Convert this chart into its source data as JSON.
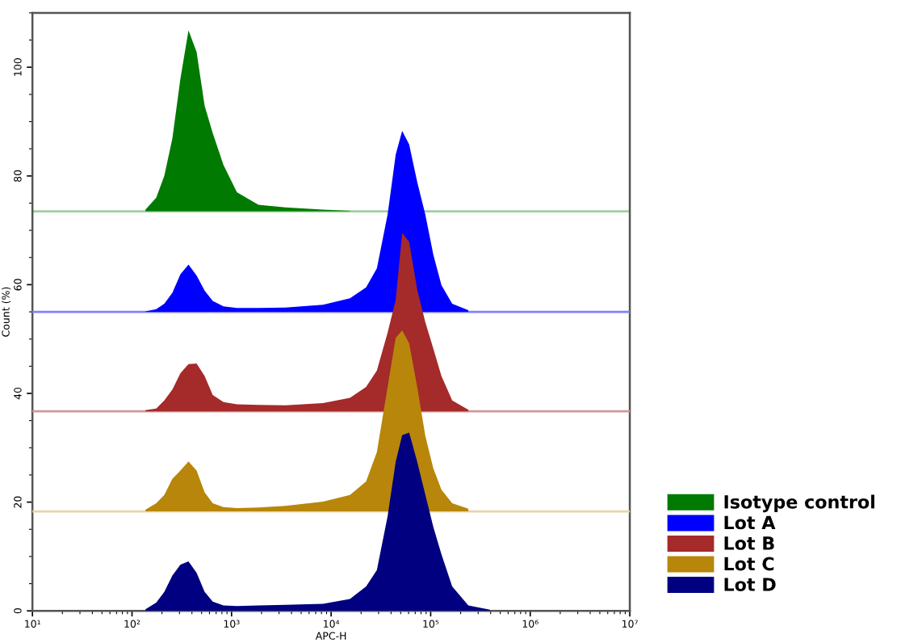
{
  "chart_data": {
    "type": "area",
    "xlabel": "APC-H",
    "ylabel": "Count (%)",
    "log": "x",
    "grid": false,
    "legend": "bottom right",
    "x": [
      136.5,
      175.1,
      211.0,
      254.3,
      306.5,
      369.4,
      445.3,
      536.6,
      647.0,
      829.8,
      1132,
      1863,
      3471,
      8296,
      15460,
      22460,
      28800,
      36940,
      44520,
      51690,
      60790,
      73250,
      88300,
      106400,
      128300,
      164500,
      238900,
      393000
    ],
    "xlim": [
      10,
      10000000
    ],
    "xticks": [
      {
        "value": 10,
        "label": "10¹"
      },
      {
        "value": 100,
        "label": "10²"
      },
      {
        "value": 1000,
        "label": "10³"
      },
      {
        "value": 10000,
        "label": "10⁴"
      },
      {
        "value": 100000,
        "label": "10⁵"
      },
      {
        "value": 1000000,
        "label": "10⁶"
      },
      {
        "value": 10000000,
        "label": "10⁷"
      }
    ],
    "ylim": [
      0,
      110
    ],
    "yticks": [
      0,
      20,
      40,
      60,
      80,
      100
    ],
    "ref_lines": [
      {
        "axis": "y",
        "value": 73.5,
        "color": "#a0d0a0"
      },
      {
        "axis": "y",
        "value": 55.0,
        "color": "#8080ff"
      },
      {
        "axis": "y",
        "value": 36.7,
        "color": "#d09898"
      },
      {
        "axis": "y",
        "value": 18.3,
        "color": "#e8d4a8"
      }
    ],
    "series": [
      {
        "name": "Isotype control",
        "color": "#007a00",
        "values": [
          73.8,
          76.0,
          80.0,
          86.9,
          97.9,
          106.8,
          102.8,
          92.9,
          87.9,
          82.0,
          77.0,
          74.7,
          74.2,
          73.8,
          73.6,
          null,
          null,
          null,
          null,
          null,
          null,
          null,
          null,
          null,
          null,
          null,
          null,
          null
        ]
      },
      {
        "name": "Lot A",
        "color": "#0000ff",
        "values": [
          55.1,
          55.5,
          56.5,
          58.5,
          61.9,
          63.7,
          61.7,
          58.9,
          57.0,
          56.0,
          55.7,
          55.7,
          55.8,
          56.3,
          57.5,
          59.5,
          63.0,
          72.9,
          83.9,
          88.3,
          85.8,
          78.9,
          72.9,
          65.5,
          59.9,
          56.5,
          55.3,
          null
        ]
      },
      {
        "name": "Lot B",
        "color": "#a52a2a",
        "values": [
          36.9,
          37.2,
          38.7,
          40.7,
          43.7,
          45.4,
          45.5,
          43.2,
          39.7,
          38.4,
          38.0,
          37.9,
          37.8,
          38.2,
          39.2,
          41.2,
          44.2,
          51.2,
          57.2,
          69.5,
          67.9,
          59.1,
          53.1,
          48.2,
          43.2,
          38.7,
          37.0,
          null
        ]
      },
      {
        "name": "Lot C",
        "color": "#b8860b",
        "values": [
          18.6,
          19.8,
          21.3,
          24.3,
          25.8,
          27.5,
          25.8,
          21.8,
          19.8,
          19.1,
          18.9,
          19.0,
          19.3,
          20.1,
          21.3,
          23.8,
          29.2,
          41.2,
          50.2,
          51.6,
          49.2,
          41.2,
          32.2,
          26.2,
          22.3,
          19.8,
          18.8,
          null
        ]
      },
      {
        "name": "Lot D",
        "color": "#000080",
        "values": [
          0.3,
          1.5,
          3.5,
          6.5,
          8.5,
          9.1,
          7.0,
          3.5,
          1.7,
          1.0,
          0.9,
          1.0,
          1.1,
          1.3,
          2.2,
          4.5,
          7.5,
          17.4,
          27.4,
          32.3,
          32.8,
          27.4,
          21.4,
          15.4,
          10.4,
          4.5,
          1.0,
          0.2
        ]
      }
    ]
  }
}
